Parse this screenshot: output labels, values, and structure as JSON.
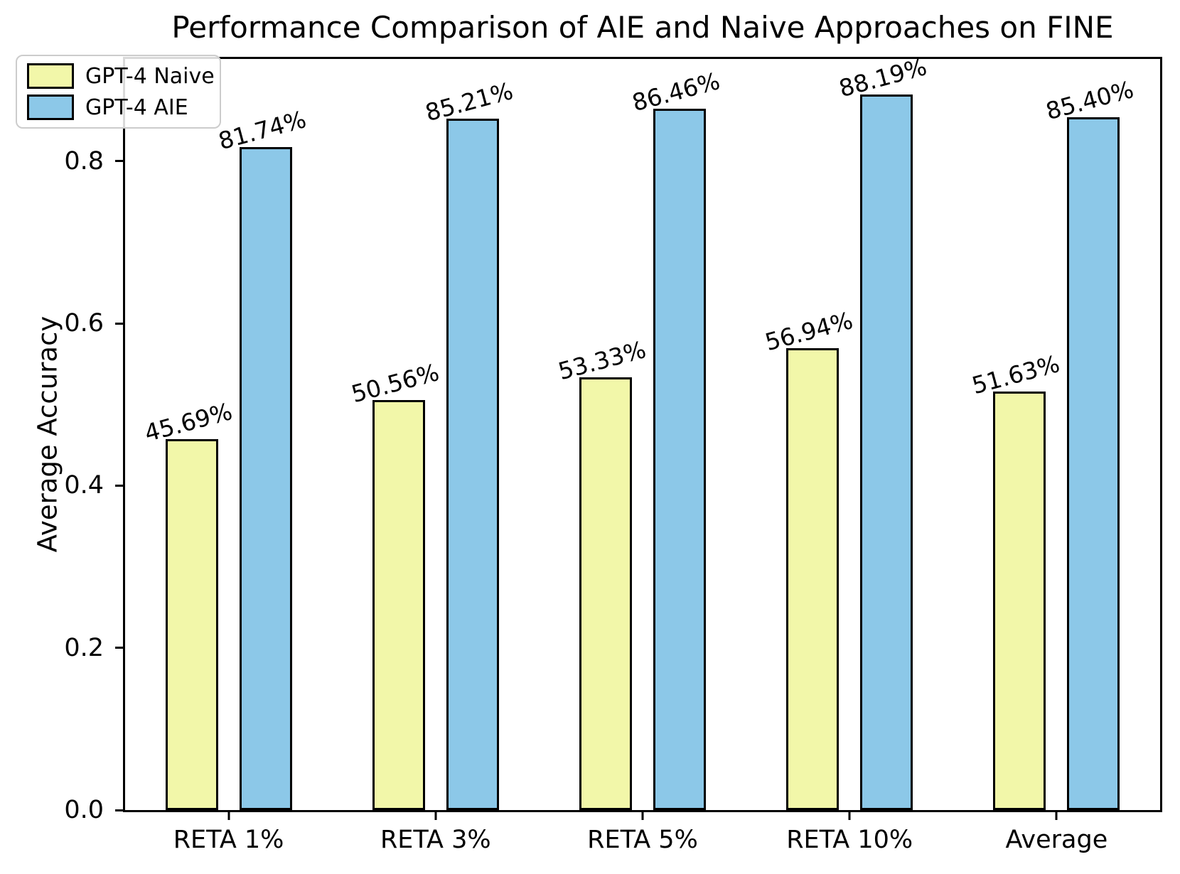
{
  "title": "Performance Comparison of AIE and Naive Approaches on FINE",
  "chart_data": {
    "type": "bar",
    "title": "Performance Comparison of AIE and Naive Approaches on FINE",
    "xlabel": "",
    "ylabel": "Average Accuracy",
    "categories": [
      "RETA 1%",
      "RETA 3%",
      "RETA 5%",
      "RETA 10%",
      "Average"
    ],
    "series": [
      {
        "name": "GPT-4 Naive",
        "color": "#F2F7A9",
        "values": [
          0.4569,
          0.5056,
          0.5333,
          0.5694,
          0.5163
        ],
        "labels": [
          "45.69%",
          "50.56%",
          "53.33%",
          "56.94%",
          "51.63%"
        ]
      },
      {
        "name": "GPT-4 AIE",
        "color": "#8CC8E8",
        "values": [
          0.8174,
          0.8521,
          0.8646,
          0.8819,
          0.854
        ],
        "labels": [
          "81.74%",
          "85.21%",
          "86.46%",
          "88.19%",
          "85.40%"
        ]
      }
    ],
    "ylim": [
      0,
      0.926
    ],
    "yticks": [
      "0.0",
      "0.2",
      "0.4",
      "0.6",
      "0.8"
    ],
    "grid": false,
    "legend_position": "upper left",
    "bar_edge_color": "#000000",
    "label_rotation_deg": 15
  }
}
